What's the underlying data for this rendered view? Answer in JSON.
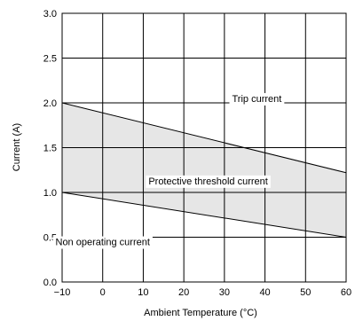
{
  "chart_data": {
    "type": "line",
    "title": "",
    "xlabel": "Ambient Temperature (°C)",
    "ylabel": "Current (A)",
    "xlim": [
      -10,
      60
    ],
    "ylim": [
      0.0,
      3.0
    ],
    "x_ticks": [
      -10,
      0,
      10,
      20,
      30,
      40,
      50,
      60
    ],
    "x_tick_labels": [
      "−10",
      "0",
      "10",
      "20",
      "30",
      "40",
      "50",
      "60"
    ],
    "y_ticks": [
      0.0,
      0.5,
      1.0,
      1.5,
      2.0,
      2.5,
      3.0
    ],
    "y_tick_labels": [
      "0.0",
      "0.5",
      "1.0",
      "1.5",
      "2.0",
      "2.5",
      "3.0"
    ],
    "grid": true,
    "series": [
      {
        "name": "Trip current",
        "x": [
          -10,
          60
        ],
        "y": [
          2.0,
          1.22
        ]
      },
      {
        "name": "Non operating current",
        "x": [
          -10,
          60
        ],
        "y": [
          1.0,
          0.5
        ]
      }
    ],
    "shaded_region": {
      "label": "Protective threshold current",
      "between": [
        "Trip current",
        "Non operating current"
      ],
      "color": "#e6e6e6"
    },
    "annotations": [
      {
        "text": "Trip current",
        "x": 38,
        "y": 2.05
      },
      {
        "text": "Protective threshold current",
        "x": 26,
        "y": 1.13
      },
      {
        "text": "Non operating current",
        "x": 0,
        "y": 0.45
      }
    ]
  }
}
